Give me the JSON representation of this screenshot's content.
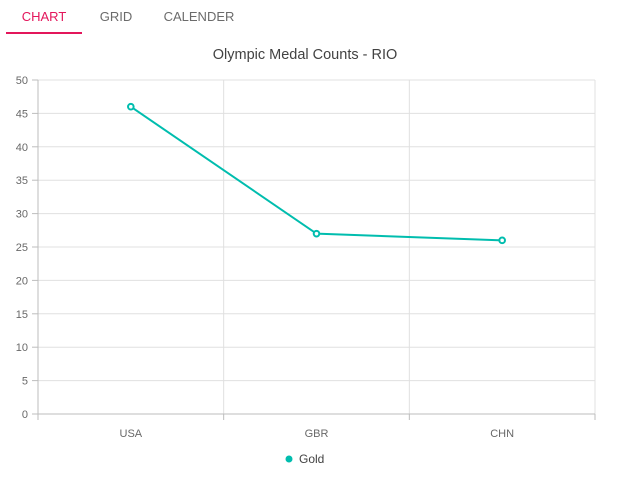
{
  "tabs": [
    {
      "label": "CHART",
      "active": true
    },
    {
      "label": "GRID",
      "active": false
    },
    {
      "label": "CALENDER",
      "active": false
    }
  ],
  "colors": {
    "accent": "#e3165b",
    "series": "#00bdae",
    "grid": "#e0e0e0",
    "axis": "#bdbdbd",
    "text": "#686868",
    "title": "#424242"
  },
  "chart_data": {
    "type": "line",
    "title": "Olympic Medal Counts - RIO",
    "categories": [
      "USA",
      "GBR",
      "CHN"
    ],
    "series": [
      {
        "name": "Gold",
        "values": [
          46,
          27,
          26
        ],
        "marker": "circle"
      }
    ],
    "ylim": [
      0,
      50
    ],
    "yticks": [
      0,
      5,
      10,
      15,
      20,
      25,
      30,
      35,
      40,
      45,
      50
    ],
    "xlabel": "",
    "ylabel": "",
    "grid": true,
    "legend": "bottom-center"
  }
}
